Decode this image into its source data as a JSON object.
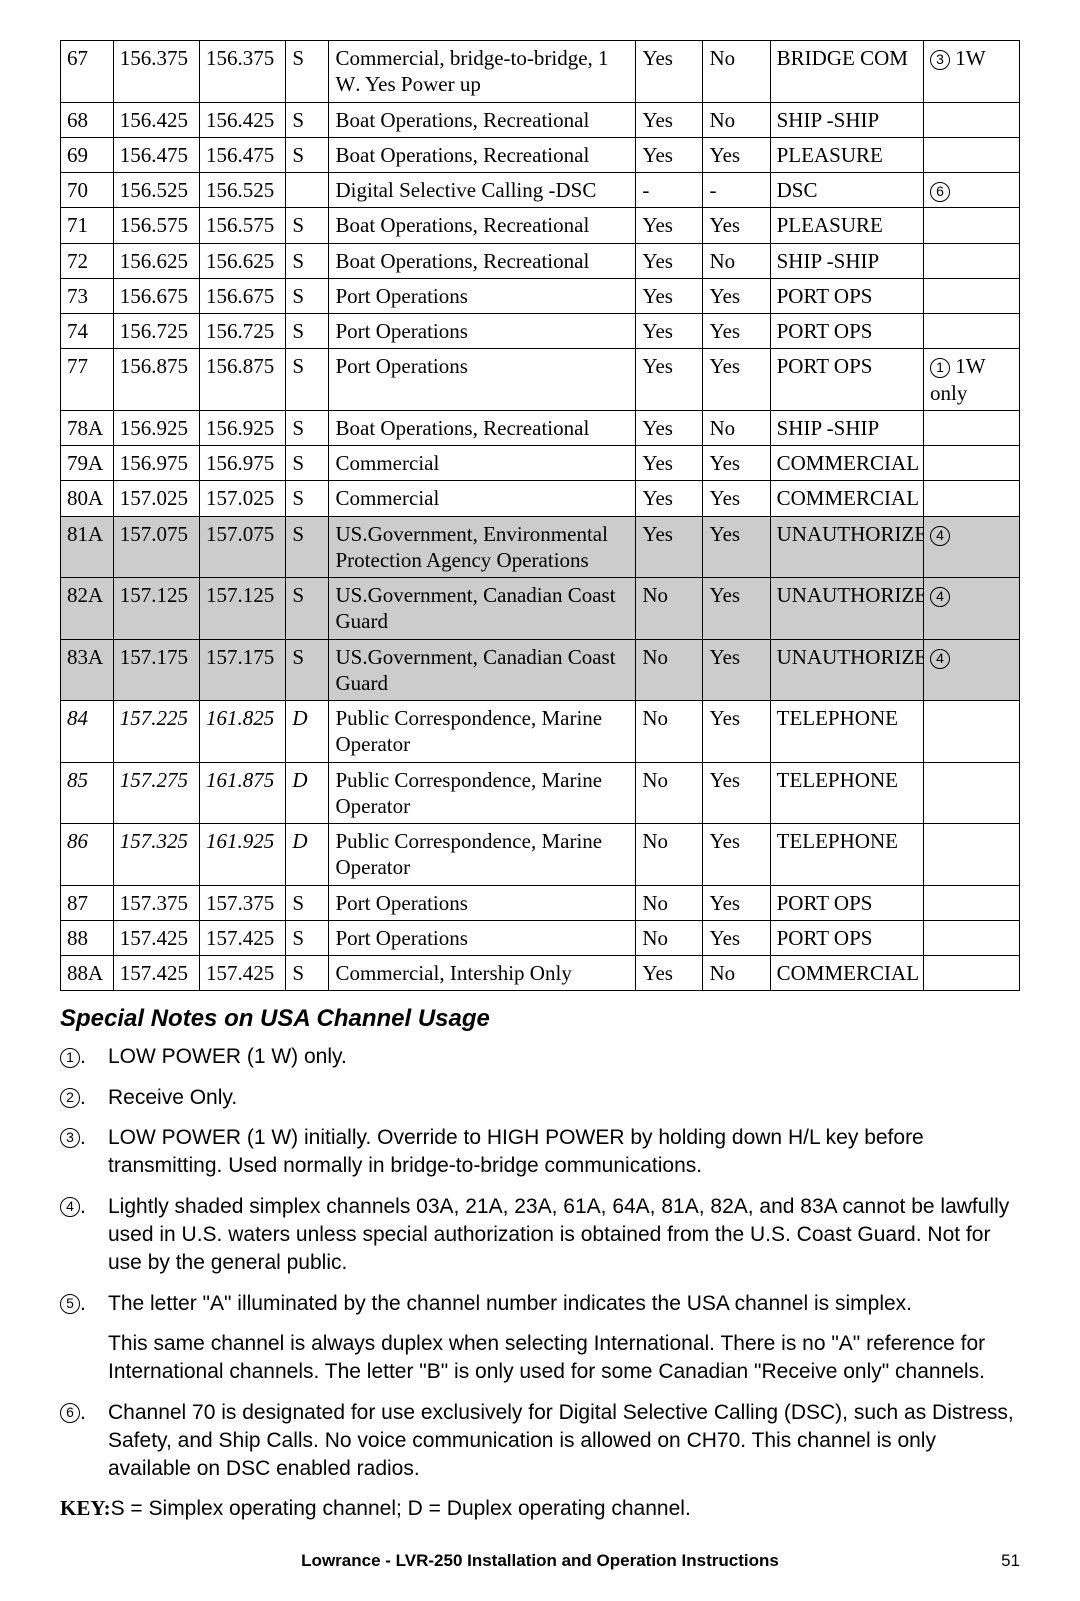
{
  "table": {
    "col_widths": [
      "5.5%",
      "9%",
      "9%",
      "4.5%",
      "32%",
      "7%",
      "7%",
      "16%",
      "10%"
    ],
    "rows": [
      {
        "c": [
          "67",
          "156.375",
          "156.375",
          "S",
          "Commercial, bridge-to-bridge, 1 W. Yes Power up",
          "Yes",
          "No",
          "BRIDGE COM",
          "③ 1W"
        ],
        "shaded": false
      },
      {
        "c": [
          "68",
          "156.425",
          "156.425",
          "S",
          "Boat Operations, Recreational",
          "Yes",
          "No",
          "SHIP -SHIP",
          ""
        ],
        "shaded": false
      },
      {
        "c": [
          "69",
          "156.475",
          "156.475",
          "S",
          "Boat Operations, Recreational",
          "Yes",
          "Yes",
          "PLEASURE",
          ""
        ],
        "shaded": false
      },
      {
        "c": [
          "70",
          "156.525",
          "156.525",
          "",
          "Digital Selective Calling -DSC",
          "-",
          "-",
          "DSC",
          "⑥"
        ],
        "shaded": false
      },
      {
        "c": [
          "71",
          "156.575",
          "156.575",
          "S",
          "Boat Operations, Recreational",
          "Yes",
          "Yes",
          "PLEASURE",
          ""
        ],
        "shaded": false
      },
      {
        "c": [
          "72",
          "156.625",
          "156.625",
          "S",
          "Boat Operations, Recreational",
          "Yes",
          "No",
          "SHIP -SHIP",
          ""
        ],
        "shaded": false
      },
      {
        "c": [
          "73",
          "156.675",
          "156.675",
          "S",
          "Port Operations",
          "Yes",
          "Yes",
          "PORT OPS",
          ""
        ],
        "shaded": false
      },
      {
        "c": [
          "74",
          "156.725",
          "156.725",
          "S",
          "Port Operations",
          "Yes",
          "Yes",
          "PORT OPS",
          ""
        ],
        "shaded": false
      },
      {
        "c": [
          "77",
          "156.875",
          "156.875",
          "S",
          "Port Operations",
          "Yes",
          "Yes",
          "PORT OPS",
          "① 1W only"
        ],
        "shaded": false
      },
      {
        "c": [
          "78A",
          "156.925",
          "156.925",
          "S",
          "Boat Operations, Recreational",
          "Yes",
          "No",
          "SHIP -SHIP",
          ""
        ],
        "shaded": false
      },
      {
        "c": [
          "79A",
          "156.975",
          "156.975",
          "S",
          "Commercial",
          "Yes",
          "Yes",
          "COMMERCIAL",
          ""
        ],
        "shaded": false
      },
      {
        "c": [
          "80A",
          "157.025",
          "157.025",
          "S",
          "Commercial",
          "Yes",
          "Yes",
          "COMMERCIAL",
          ""
        ],
        "shaded": false
      },
      {
        "c": [
          "81A",
          "157.075",
          "157.075",
          "S",
          "US.Government, Environmental Protection Agency Operations",
          "Yes",
          "Yes",
          "UNAUTHORIZED",
          "④"
        ],
        "shaded": true
      },
      {
        "c": [
          "82A",
          "157.125",
          "157.125",
          "S",
          "US.Government, Canadian Coast Guard",
          "No",
          "Yes",
          "UNAUTHORIZED",
          "④"
        ],
        "shaded": true
      },
      {
        "c": [
          "83A",
          "157.175",
          "157.175",
          "S",
          "US.Government, Canadian Coast Guard",
          "No",
          "Yes",
          "UNAUTHORIZED",
          "④"
        ],
        "shaded": true
      },
      {
        "c": [
          "84",
          "157.225",
          "161.825",
          "D",
          "Public Correspondence, Marine Operator",
          "No",
          "Yes",
          "TELEPHONE",
          ""
        ],
        "italic": true
      },
      {
        "c": [
          "85",
          "157.275",
          "161.875",
          "D",
          "Public Correspondence, Marine Operator",
          "No",
          "Yes",
          "TELEPHONE",
          ""
        ],
        "italic": true
      },
      {
        "c": [
          "86",
          "157.325",
          "161.925",
          "D",
          "Public Correspondence, Marine Operator",
          "No",
          "Yes",
          "TELEPHONE",
          ""
        ],
        "italic": true
      },
      {
        "c": [
          "87",
          "157.375",
          "157.375",
          "S",
          "Port Operations",
          "No",
          "Yes",
          "PORT OPS",
          ""
        ],
        "shaded": false
      },
      {
        "c": [
          "88",
          "157.425",
          "157.425",
          "S",
          "Port Operations",
          "No",
          "Yes",
          "PORT OPS",
          ""
        ],
        "shaded": false
      },
      {
        "c": [
          "88A",
          "157.425",
          "157.425",
          "S",
          "Commercial, Intership Only",
          "Yes",
          "No",
          "COMMERCIAL",
          ""
        ],
        "shaded": false
      }
    ]
  },
  "heading": "Special Notes on USA Channel Usage",
  "notes": [
    {
      "num": "1",
      "text": "LOW POWER (1 W) only."
    },
    {
      "num": "2",
      "text": "Receive Only."
    },
    {
      "num": "3",
      "text": "LOW POWER (1 W) initially. Override to HIGH POWER by holding down H/L key before transmitting. Used normally in bridge-to-bridge communications."
    },
    {
      "num": "4",
      "text": "Lightly shaded simplex channels 03A, 21A, 23A, 61A, 64A, 81A, 82A, and 83A cannot be lawfully used in U.S. waters unless special authorization is obtained from the U.S. Coast Guard. Not for use by the general public."
    },
    {
      "num": "5",
      "text": "The letter \"A\" illuminated by the channel number indicates the USA channel is simplex.",
      "extra": "This same channel is always duplex when selecting International. There is no \"A\" reference for International channels. The letter \"B\" is only used for some Canadian \"Receive only\" channels."
    },
    {
      "num": "6",
      "text": "Channel 70 is designated for use exclusively for Digital Selective Calling (DSC), such as Distress, Safety, and Ship Calls. No voice communication is allowed on CH70. This channel is only available on DSC enabled radios."
    }
  ],
  "key_label": "KEY:",
  "key_text": "S = Simplex operating channel; D = Duplex operating channel.",
  "footer_title": "Lowrance - LVR-250 Installation and Operation Instructions",
  "page_num": "51"
}
